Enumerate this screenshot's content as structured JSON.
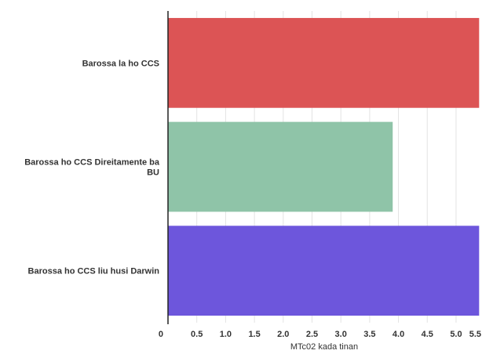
{
  "chart_data": {
    "type": "bar",
    "orientation": "horizontal",
    "categories": [
      "Barossa la ho CCS",
      "Barossa ho CCS Direitamente ba BU",
      "Barossa ho CCS liu husi Darwin"
    ],
    "category_lines": [
      [
        "Barossa la ho CCS"
      ],
      [
        "Barossa ho CCS Direitamente ba",
        "BU"
      ],
      [
        "Barossa ho CCS liu husi Darwin"
      ]
    ],
    "values": [
      5.4,
      3.9,
      5.4
    ],
    "colors": [
      "#dc5455",
      "#8fc4a8",
      "#6d56dc"
    ],
    "xlabel": "MTc02 kada tinan",
    "xlim": [
      0,
      5.45
    ],
    "ticks": [
      "0",
      "0.5",
      "1.0",
      "1.5",
      "2.0",
      "2.5",
      "3.0",
      "3.5",
      "4.0",
      "4.5",
      "5.0",
      "5.5"
    ],
    "grid": true
  }
}
